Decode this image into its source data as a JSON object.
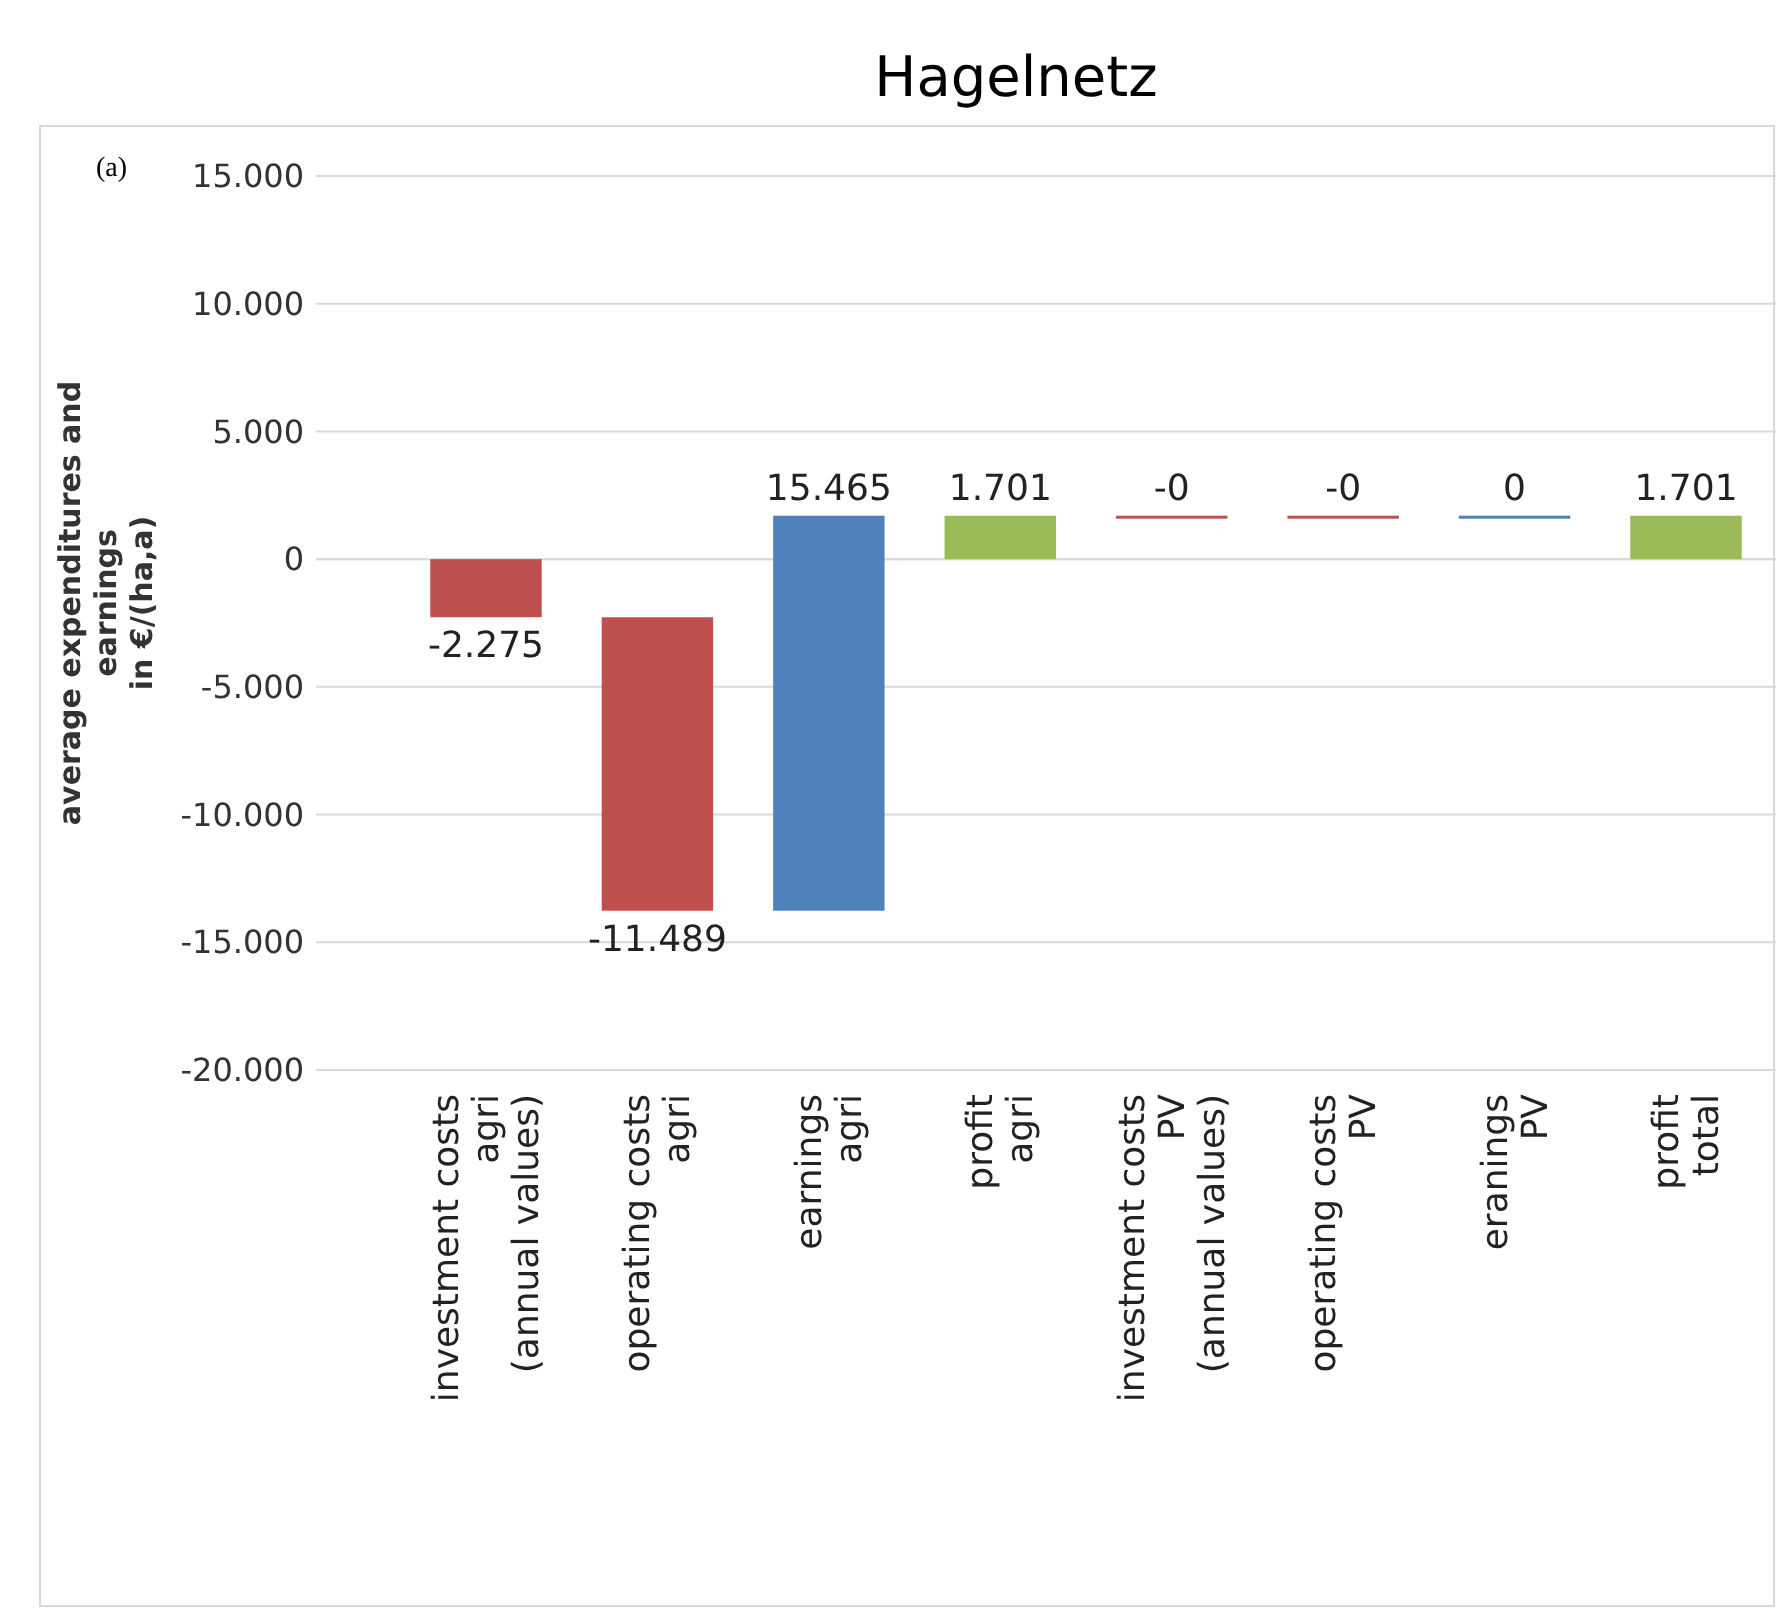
{
  "chart_data": {
    "type": "bar",
    "title": "Hagelnetz",
    "ylabel": "average expenditures and\nearnings\nin €/(ha,a)",
    "annotations": [
      "(a)"
    ],
    "categories": [
      "investment costs\nagri\n(annual values)",
      "operating costs\nagri",
      "earnings\nagri",
      "profit\nagri",
      "investment costs\nPV\n(annual values)",
      "operating costs\nPV",
      "eranings\nPV",
      "profit\ntotal"
    ],
    "values": [
      -2275,
      -11489,
      15465,
      1701,
      0,
      0,
      0,
      1701
    ],
    "base": [
      0,
      -2275,
      -13764,
      0,
      1701,
      1701,
      1701,
      0
    ],
    "colors": [
      "#c0504d",
      "#c0504d",
      "#4f81bd",
      "#9bbb59",
      "#c0504d",
      "#c0504d",
      "#4f81bd",
      "#9bbb59"
    ],
    "value_labels": [
      "-2.275",
      "-11.489",
      "15.465",
      "1.701",
      "-0",
      "-0",
      "0",
      "1.701"
    ],
    "ylim": [
      -20000,
      15000
    ],
    "yticks": [
      {
        "value": -20000,
        "label": "-20.000"
      },
      {
        "value": -15000,
        "label": "-15.000"
      },
      {
        "value": -10000,
        "label": "-10.000"
      },
      {
        "value": -5000,
        "label": "-5.000"
      },
      {
        "value": 0,
        "label": "0"
      },
      {
        "value": 5000,
        "label": "5.000"
      },
      {
        "value": 10000,
        "label": "10.000"
      },
      {
        "value": 15000,
        "label": "15.000"
      }
    ],
    "grid": "y"
  }
}
